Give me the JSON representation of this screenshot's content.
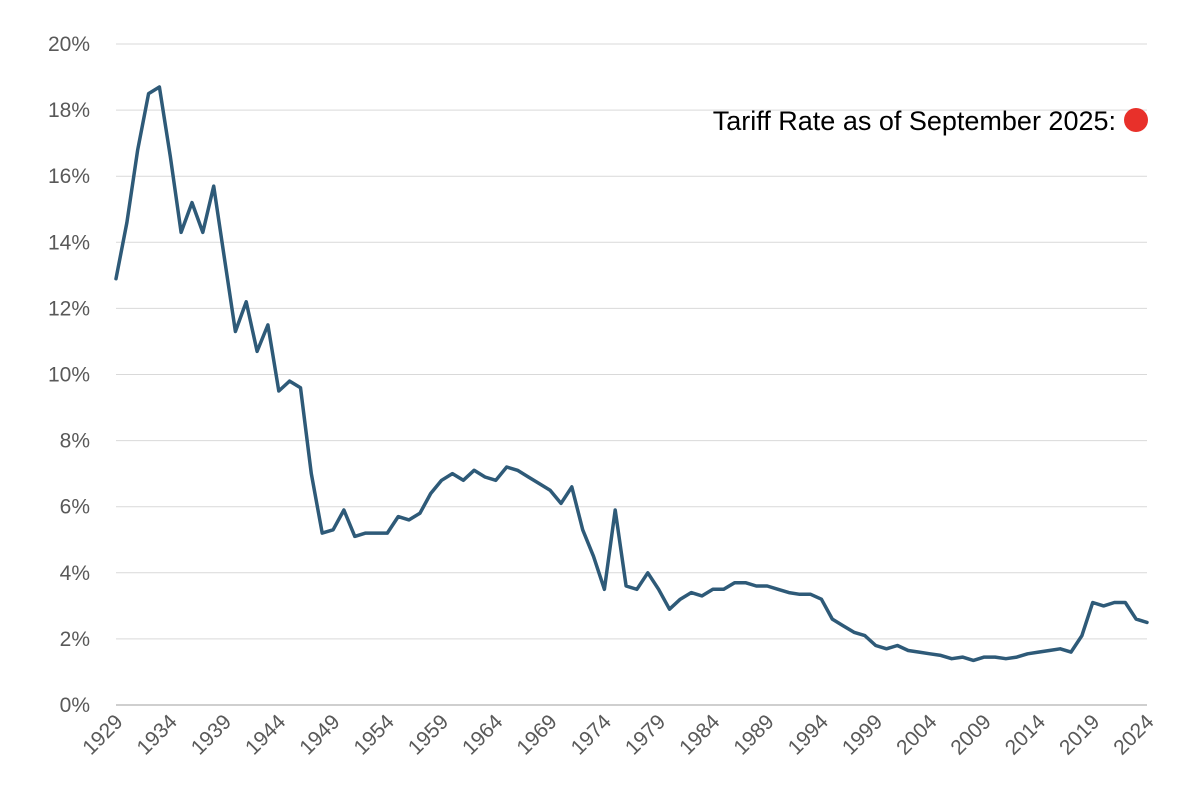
{
  "chart_data": {
    "type": "line",
    "title": "",
    "xlabel": "",
    "ylabel": "",
    "ylim": [
      0,
      20
    ],
    "xlim": [
      1929,
      2024
    ],
    "y_ticks": [
      "0%",
      "2%",
      "4%",
      "6%",
      "8%",
      "10%",
      "12%",
      "14%",
      "16%",
      "18%",
      "20%"
    ],
    "x_ticks": [
      "1929",
      "1934",
      "1939",
      "1944",
      "1949",
      "1954",
      "1959",
      "1964",
      "1969",
      "1974",
      "1979",
      "1984",
      "1989",
      "1994",
      "1999",
      "2004",
      "2009",
      "2014",
      "2019",
      "2024"
    ],
    "grid": "horizontal",
    "line_color": "#2e5a78",
    "series": [
      {
        "x": [
          1929,
          1930,
          1931,
          1932,
          1933,
          1934,
          1935,
          1936,
          1937,
          1938,
          1939,
          1940,
          1941,
          1942,
          1943,
          1944,
          1945,
          1946,
          1947,
          1948,
          1949,
          1950,
          1951,
          1952,
          1953,
          1954,
          1955,
          1956,
          1957,
          1958,
          1959,
          1960,
          1961,
          1962,
          1963,
          1964,
          1965,
          1966,
          1967,
          1968,
          1969,
          1970,
          1971,
          1972,
          1973,
          1974,
          1975,
          1976,
          1977,
          1978,
          1979,
          1980,
          1981,
          1982,
          1983,
          1984,
          1985,
          1986,
          1987,
          1988,
          1989,
          1990,
          1991,
          1992,
          1993,
          1994,
          1995,
          1996,
          1997,
          1998,
          1999,
          2000,
          2001,
          2002,
          2003,
          2004,
          2005,
          2006,
          2007,
          2008,
          2009,
          2010,
          2011,
          2012,
          2013,
          2014,
          2015,
          2016,
          2017,
          2018,
          2019,
          2020,
          2021,
          2022,
          2023,
          2024
        ],
        "values": [
          12.9,
          14.6,
          16.8,
          18.5,
          18.7,
          16.6,
          14.3,
          15.2,
          14.3,
          15.7,
          13.5,
          11.3,
          12.2,
          10.7,
          11.5,
          9.5,
          9.8,
          9.6,
          7.0,
          5.2,
          5.3,
          5.9,
          5.1,
          5.2,
          5.2,
          5.2,
          5.7,
          5.6,
          5.8,
          6.4,
          6.8,
          7.0,
          6.8,
          7.1,
          6.9,
          6.8,
          7.2,
          7.1,
          6.9,
          6.7,
          6.5,
          6.1,
          6.6,
          5.3,
          4.5,
          3.5,
          5.9,
          3.6,
          3.5,
          4.0,
          3.5,
          2.9,
          3.2,
          3.4,
          3.3,
          3.5,
          3.5,
          3.7,
          3.7,
          3.6,
          3.6,
          3.5,
          3.4,
          3.35,
          3.35,
          3.2,
          2.6,
          2.4,
          2.2,
          2.1,
          1.8,
          1.7,
          1.8,
          1.65,
          1.6,
          1.55,
          1.5,
          1.4,
          1.45,
          1.35,
          1.45,
          1.45,
          1.4,
          1.45,
          1.55,
          1.6,
          1.65,
          1.7,
          1.6,
          2.1,
          3.1,
          3.0,
          3.1,
          3.1,
          2.6,
          2.5
        ]
      }
    ],
    "annotation": {
      "text": "Tariff Rate as of September 2025:",
      "marker_color": "#e8302a",
      "value": 17.7
    }
  }
}
